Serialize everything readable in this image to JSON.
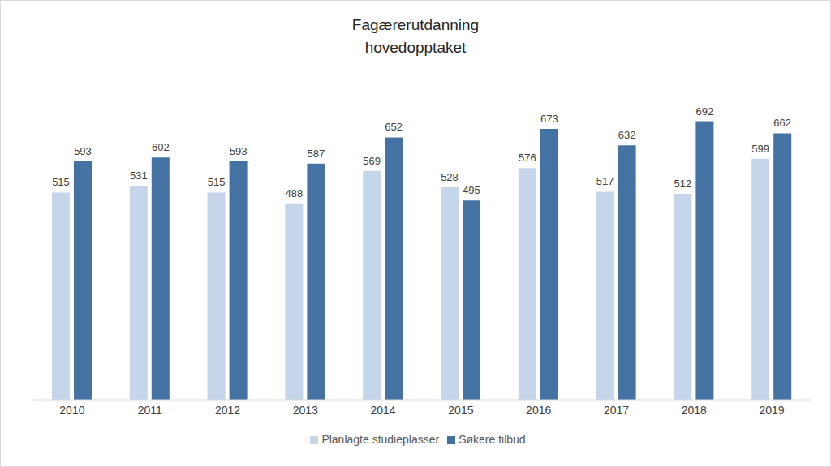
{
  "chart_data": {
    "type": "bar",
    "title": "Fagærerutdanning",
    "subtitle": "hovedopptaket",
    "categories": [
      "2010",
      "2011",
      "2012",
      "2013",
      "2014",
      "2015",
      "2016",
      "2017",
      "2018",
      "2019"
    ],
    "series": [
      {
        "name": "Planlagte studieplasser",
        "color": "#c5d5ea",
        "values": [
          515,
          531,
          515,
          488,
          569,
          528,
          576,
          517,
          512,
          599
        ]
      },
      {
        "name": "Søkere tilbud",
        "color": "#4472a2",
        "values": [
          593,
          602,
          593,
          587,
          652,
          495,
          673,
          632,
          692,
          662
        ]
      }
    ],
    "ylim": [
      0,
      800
    ],
    "grid": false,
    "legend": "bottom",
    "data_labels": true,
    "tick_labels": "x"
  }
}
